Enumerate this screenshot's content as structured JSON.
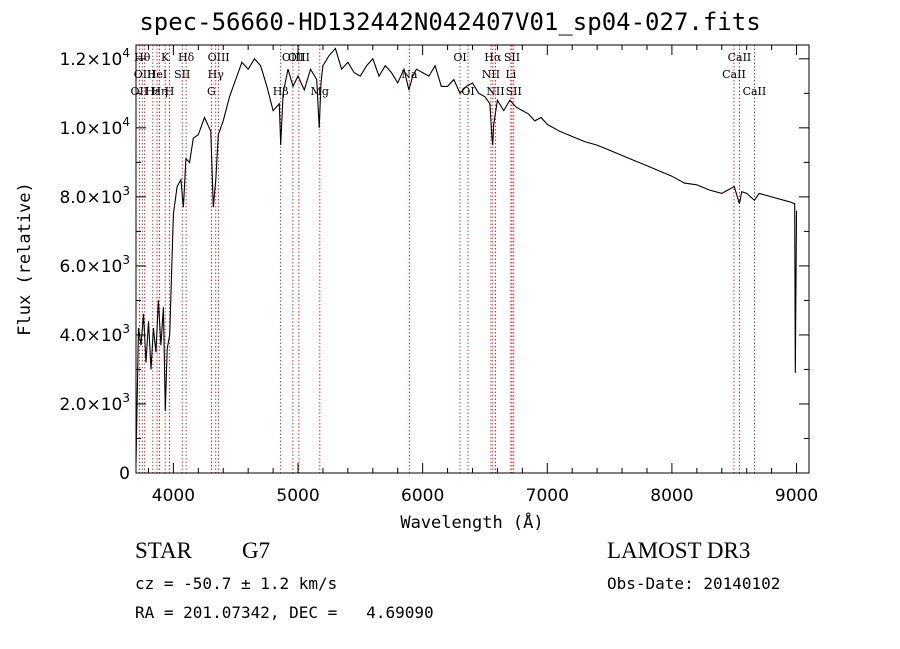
{
  "title": "spec-56660-HD132442N042407V01_sp04-027.fits",
  "chart_data": {
    "type": "line",
    "title": "spec-56660-HD132442N042407V01_sp04-027.fits",
    "xlabel": "Wavelength (Å)",
    "ylabel": "Flux (relative)",
    "xlim": [
      3700,
      9100
    ],
    "ylim": [
      0,
      12400
    ],
    "xticks": [
      4000,
      5000,
      6000,
      7000,
      8000,
      9000
    ],
    "xtick_labels": [
      "4000",
      "5000",
      "6000",
      "7000",
      "8000",
      "9000"
    ],
    "yticks": [
      0,
      2000,
      4000,
      6000,
      8000,
      10000,
      12000
    ],
    "ytick_labels": [
      {
        "mant": "0",
        "exp": ""
      },
      {
        "mant": "2.0×10",
        "exp": "3"
      },
      {
        "mant": "4.0×10",
        "exp": "3"
      },
      {
        "mant": "6.0×10",
        "exp": "3"
      },
      {
        "mant": "8.0×10",
        "exp": "3"
      },
      {
        "mant": "1.0×10",
        "exp": "4"
      },
      {
        "mant": "1.2×10",
        "exp": "4"
      }
    ],
    "series": [
      {
        "name": "flux",
        "x": [
          3700,
          3720,
          3740,
          3760,
          3780,
          3800,
          3820,
          3840,
          3860,
          3880,
          3900,
          3920,
          3935,
          3950,
          3970,
          4000,
          4030,
          4060,
          4080,
          4100,
          4130,
          4160,
          4200,
          4250,
          4300,
          4320,
          4340,
          4360,
          4380,
          4400,
          4450,
          4500,
          4550,
          4600,
          4650,
          4700,
          4750,
          4800,
          4850,
          4861,
          4880,
          4920,
          4960,
          5000,
          5050,
          5100,
          5150,
          5170,
          5184,
          5200,
          5250,
          5300,
          5350,
          5400,
          5450,
          5500,
          5550,
          5600,
          5650,
          5700,
          5750,
          5800,
          5850,
          5890,
          5920,
          5950,
          6000,
          6050,
          6100,
          6150,
          6200,
          6250,
          6300,
          6350,
          6400,
          6450,
          6500,
          6540,
          6555,
          6562,
          6570,
          6600,
          6650,
          6700,
          6750,
          6800,
          6850,
          6900,
          6950,
          7000,
          7100,
          7200,
          7300,
          7400,
          7500,
          7600,
          7700,
          7800,
          7900,
          8000,
          8100,
          8200,
          8300,
          8400,
          8500,
          8542,
          8560,
          8600,
          8662,
          8700,
          8800,
          8900,
          8950,
          8985,
          8990,
          9000
        ],
        "y": [
          300,
          4200,
          3700,
          4600,
          3200,
          4400,
          3000,
          4200,
          3500,
          5000,
          3700,
          4800,
          1800,
          3600,
          4000,
          7500,
          8300,
          8500,
          7700,
          9100,
          9000,
          9700,
          9800,
          10300,
          9900,
          7700,
          8500,
          9800,
          10000,
          10200,
          10900,
          11400,
          11900,
          11700,
          12000,
          11800,
          11200,
          10500,
          10700,
          9500,
          11000,
          11700,
          11200,
          11500,
          11100,
          11700,
          11400,
          10000,
          11300,
          11800,
          12100,
          12300,
          11700,
          11900,
          11600,
          11500,
          11800,
          12000,
          11500,
          11800,
          11600,
          11300,
          11700,
          11100,
          11500,
          11700,
          11600,
          11500,
          11800,
          11200,
          11200,
          11400,
          11000,
          11200,
          11300,
          11000,
          10900,
          10700,
          9800,
          9500,
          10100,
          10800,
          10500,
          10800,
          10600,
          10500,
          10400,
          10200,
          10300,
          10100,
          9900,
          9750,
          9600,
          9500,
          9350,
          9200,
          9050,
          8900,
          8750,
          8600,
          8400,
          8350,
          8200,
          8100,
          8300,
          7800,
          8150,
          8100,
          7900,
          8100,
          8000,
          7900,
          7850,
          7800,
          2900,
          7600
        ]
      }
    ],
    "line_markers": [
      {
        "wavelength": 3727,
        "label": "OII",
        "row": 2
      },
      {
        "wavelength": 3750,
        "label": "Hθ",
        "row": 0
      },
      {
        "wavelength": 3770,
        "label": "OIII",
        "row": 1
      },
      {
        "wavelength": 3835,
        "label": "Hε",
        "row": 2
      },
      {
        "wavelength": 3869,
        "label": "HeI",
        "row": 1
      },
      {
        "wavelength": 3889,
        "label": "Hη",
        "row": 2
      },
      {
        "wavelength": 3934,
        "label": "K",
        "row": 0
      },
      {
        "wavelength": 3969,
        "label": "H",
        "row": 2
      },
      {
        "wavelength": 4071,
        "label": "SII",
        "row": 1
      },
      {
        "wavelength": 4102,
        "label": "Hδ",
        "row": 0
      },
      {
        "wavelength": 4305,
        "label": "G",
        "row": 2
      },
      {
        "wavelength": 4340,
        "label": "Hγ",
        "row": 1
      },
      {
        "wavelength": 4363,
        "label": "OIII",
        "row": 0
      },
      {
        "wavelength": 4861,
        "label": "Hβ",
        "row": 2
      },
      {
        "wavelength": 4959,
        "label": "OIII",
        "row": 0
      },
      {
        "wavelength": 5007,
        "label": "OIII",
        "row": 0
      },
      {
        "wavelength": 5175,
        "label": "Mg",
        "row": 2
      },
      {
        "wavelength": 5893,
        "label": "Na",
        "row": 1
      },
      {
        "wavelength": 6300,
        "label": "OI",
        "row": 0
      },
      {
        "wavelength": 6364,
        "label": "OI",
        "row": 2
      },
      {
        "wavelength": 6548,
        "label": "NII",
        "row": 1
      },
      {
        "wavelength": 6563,
        "label": "Hα",
        "row": 0
      },
      {
        "wavelength": 6584,
        "label": "NII",
        "row": 2
      },
      {
        "wavelength": 6708,
        "label": "Li",
        "row": 1
      },
      {
        "wavelength": 6717,
        "label": "SII",
        "row": 0
      },
      {
        "wavelength": 6731,
        "label": "SII",
        "row": 2
      },
      {
        "wavelength": 8498,
        "label": "CaII",
        "row": 1
      },
      {
        "wavelength": 8542,
        "label": "CaII",
        "row": 0
      },
      {
        "wavelength": 8662,
        "label": "CaII",
        "row": 2
      }
    ]
  },
  "info": {
    "class": "STAR",
    "subclass": "G7",
    "cz": "cz = -50.7 ± 1.2 km/s",
    "radec": "RA = 201.07342, DEC =   4.69090",
    "survey": "LAMOST DR3",
    "obs_date": "Obs-Date: 20140102"
  },
  "colors": {
    "line_marker": "#cc0000",
    "spectrum": "#000000",
    "axes": "#000000"
  }
}
